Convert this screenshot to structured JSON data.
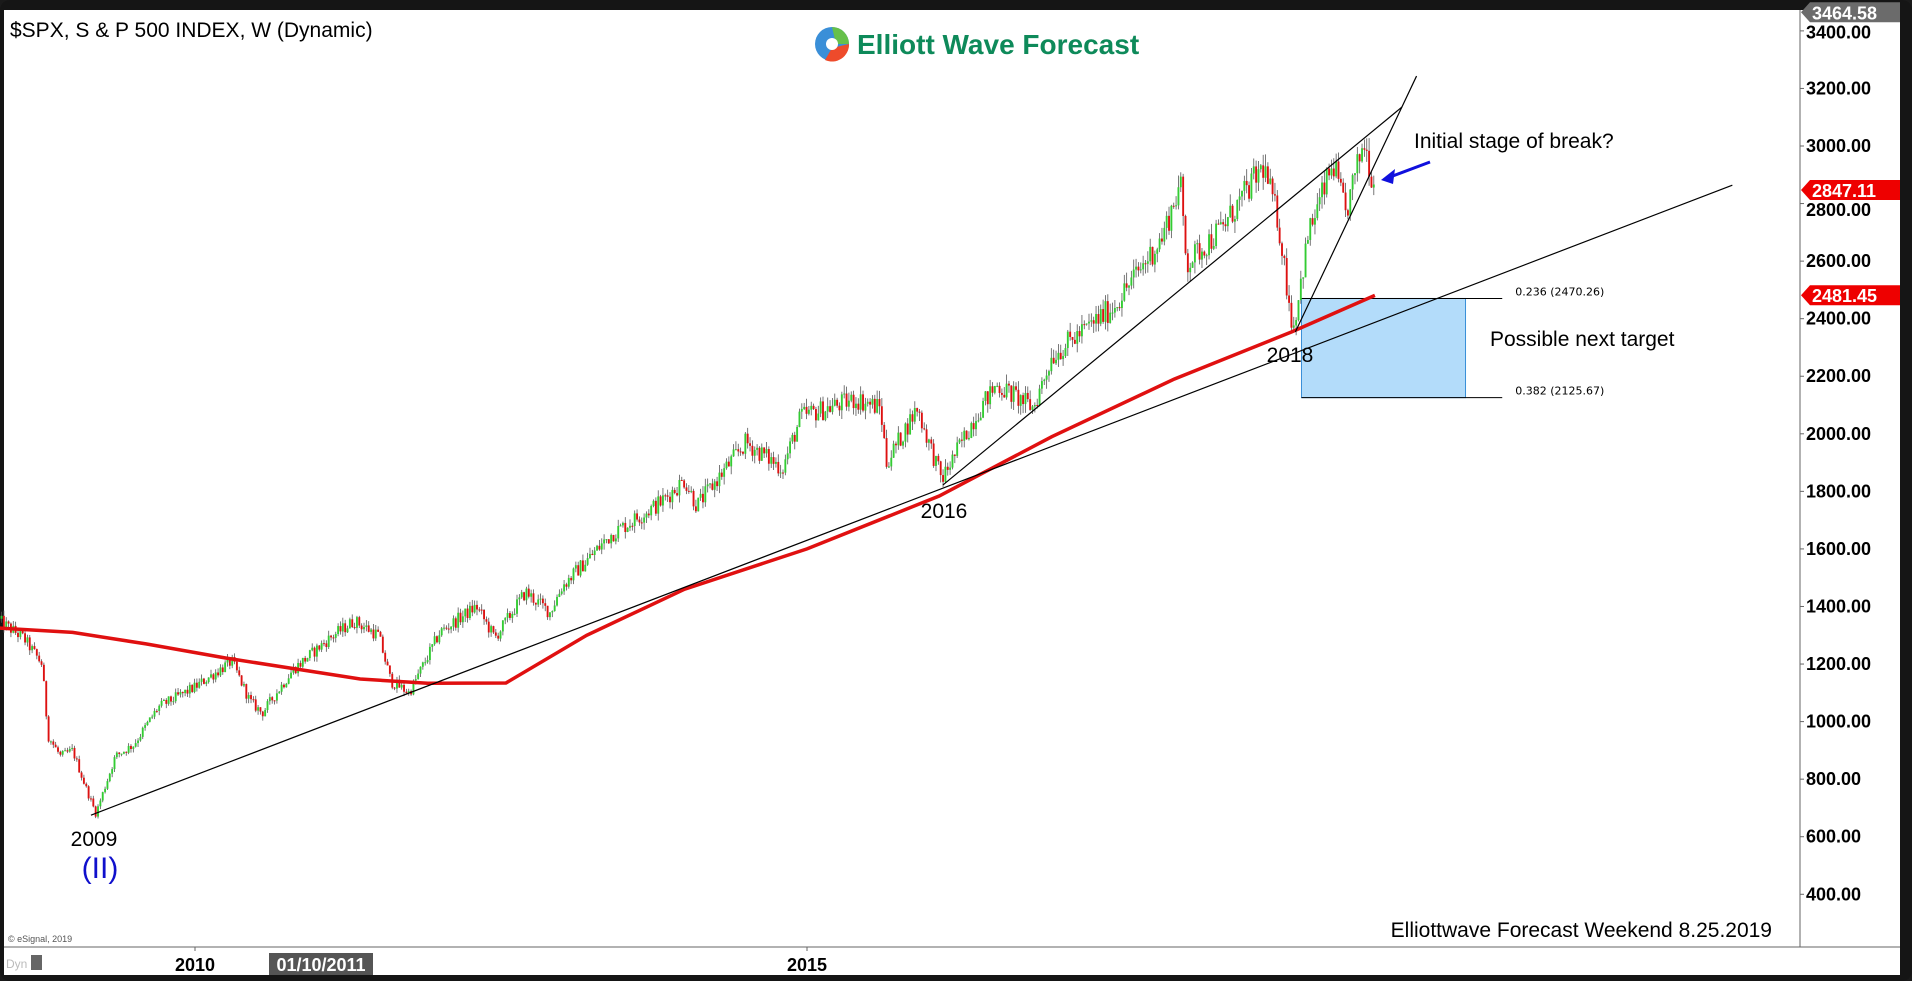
{
  "header": {
    "title": "$SPX, S & P 500 INDEX, W (Dynamic)",
    "logo_text": "Elliott Wave Forecast",
    "copyright": "© eSignal, 2019",
    "dyn_label": "Dyn",
    "footer": "Elliottwave Forecast Weekend  8.25.2019"
  },
  "colors": {
    "up": "#33cc33",
    "down": "#dd1111",
    "ma": "#e01010",
    "target_box": "#b3dcfa",
    "wave_label": "#1010cc",
    "logo": "#0e8a5a"
  },
  "chart_data": {
    "type": "candlestick",
    "title": "$SPX, S & P 500 INDEX, W (Dynamic)",
    "timeframe": "weekly",
    "y_ticks": [
      400,
      600,
      800,
      1000,
      1200,
      1400,
      1600,
      1800,
      2000,
      2200,
      2400,
      2600,
      2800,
      3000,
      3200,
      3400
    ],
    "y_tick_labels": [
      "400.00",
      "600.00",
      "800.00",
      "1000.00",
      "1200.00",
      "1400.00",
      "1600.00",
      "1800.00",
      "2000.00",
      "2200.00",
      "2400.00",
      "2600.00",
      "2800.00",
      "3000.00",
      "3200.00",
      "3400.00"
    ],
    "ylim": [
      270,
      3470
    ],
    "x_ticks": [
      2010,
      2015
    ],
    "x_tick_labels": [
      "2010",
      "2015"
    ],
    "x_cursor_label": "01/10/2011",
    "xlim": [
      2008.4,
      2023.1
    ],
    "price_path": [
      [
        2008.4,
        1350
      ],
      [
        2008.6,
        1290
      ],
      [
        2008.75,
        1200
      ],
      [
        2008.8,
        950
      ],
      [
        2008.9,
        880
      ],
      [
        2009.0,
        900
      ],
      [
        2009.1,
        780
      ],
      [
        2009.19,
        680
      ],
      [
        2009.35,
        880
      ],
      [
        2009.5,
        920
      ],
      [
        2009.7,
        1050
      ],
      [
        2010.0,
        1120
      ],
      [
        2010.3,
        1210
      ],
      [
        2010.45,
        1070
      ],
      [
        2010.55,
        1030
      ],
      [
        2010.8,
        1180
      ],
      [
        2011.1,
        1290
      ],
      [
        2011.3,
        1350
      ],
      [
        2011.5,
        1300
      ],
      [
        2011.6,
        1140
      ],
      [
        2011.75,
        1100
      ],
      [
        2012.0,
        1310
      ],
      [
        2012.3,
        1400
      ],
      [
        2012.45,
        1290
      ],
      [
        2012.7,
        1450
      ],
      [
        2012.9,
        1380
      ],
      [
        2013.0,
        1470
      ],
      [
        2013.4,
        1650
      ],
      [
        2013.8,
        1760
      ],
      [
        2014.0,
        1840
      ],
      [
        2014.1,
        1750
      ],
      [
        2014.5,
        1970
      ],
      [
        2014.8,
        1880
      ],
      [
        2014.95,
        2060
      ],
      [
        2015.4,
        2120
      ],
      [
        2015.6,
        2090
      ],
      [
        2015.65,
        1900
      ],
      [
        2015.9,
        2090
      ],
      [
        2016.1,
        1840
      ],
      [
        2016.4,
        2080
      ],
      [
        2016.55,
        2170
      ],
      [
        2016.85,
        2090
      ],
      [
        2017.0,
        2270
      ],
      [
        2017.5,
        2440
      ],
      [
        2017.9,
        2680
      ],
      [
        2018.05,
        2870
      ],
      [
        2018.1,
        2590
      ],
      [
        2018.4,
        2720
      ],
      [
        2018.73,
        2930
      ],
      [
        2018.85,
        2740
      ],
      [
        2018.97,
        2360
      ],
      [
        2019.1,
        2700
      ],
      [
        2019.3,
        2940
      ],
      [
        2019.4,
        2760
      ],
      [
        2019.55,
        3020
      ],
      [
        2019.64,
        2850
      ]
    ],
    "moving_average": [
      [
        2008.4,
        1325
      ],
      [
        2009.0,
        1310
      ],
      [
        2009.6,
        1270
      ],
      [
        2010.25,
        1221
      ],
      [
        2011.35,
        1148
      ],
      [
        2011.9,
        1133
      ],
      [
        2012.54,
        1134
      ],
      [
        2013.2,
        1300
      ],
      [
        2014.0,
        1460
      ],
      [
        2015.0,
        1600
      ],
      [
        2016.08,
        1784
      ],
      [
        2017.0,
        1990
      ],
      [
        2018.0,
        2190
      ],
      [
        2018.96,
        2354
      ],
      [
        2019.64,
        2481
      ]
    ],
    "price_flags": [
      {
        "label": "3464.58",
        "value": 3464.58,
        "color": "#6b6b6b"
      },
      {
        "label": "2847.11",
        "value": 2847.11,
        "color": "#ee0000"
      },
      {
        "label": "2481.45",
        "value": 2481.45,
        "color": "#ee0000"
      }
    ],
    "trendlines": [
      [
        [
          2009.15,
          675
        ],
        [
          2022.56,
          2864
        ]
      ],
      [
        [
          2016.11,
          1822
        ],
        [
          2019.86,
          3135
        ]
      ],
      [
        [
          2018.99,
          2354
        ],
        [
          2019.98,
          3243
        ]
      ]
    ],
    "fib_zone": {
      "from": 2019.04,
      "to": 2020.38,
      "line_to": 2020.68,
      "upper": 2470.26,
      "lower": 2125.67,
      "upper_label": "0.236 (2470.26)",
      "lower_label": "0.382 (2125.67)"
    },
    "annotations": {
      "low_2009": "2009",
      "wave_ii": "(II)",
      "low_2016": "2016",
      "low_2018": "2018",
      "break_note": "Initial stage of break?",
      "target_note": "Possible next target"
    }
  }
}
